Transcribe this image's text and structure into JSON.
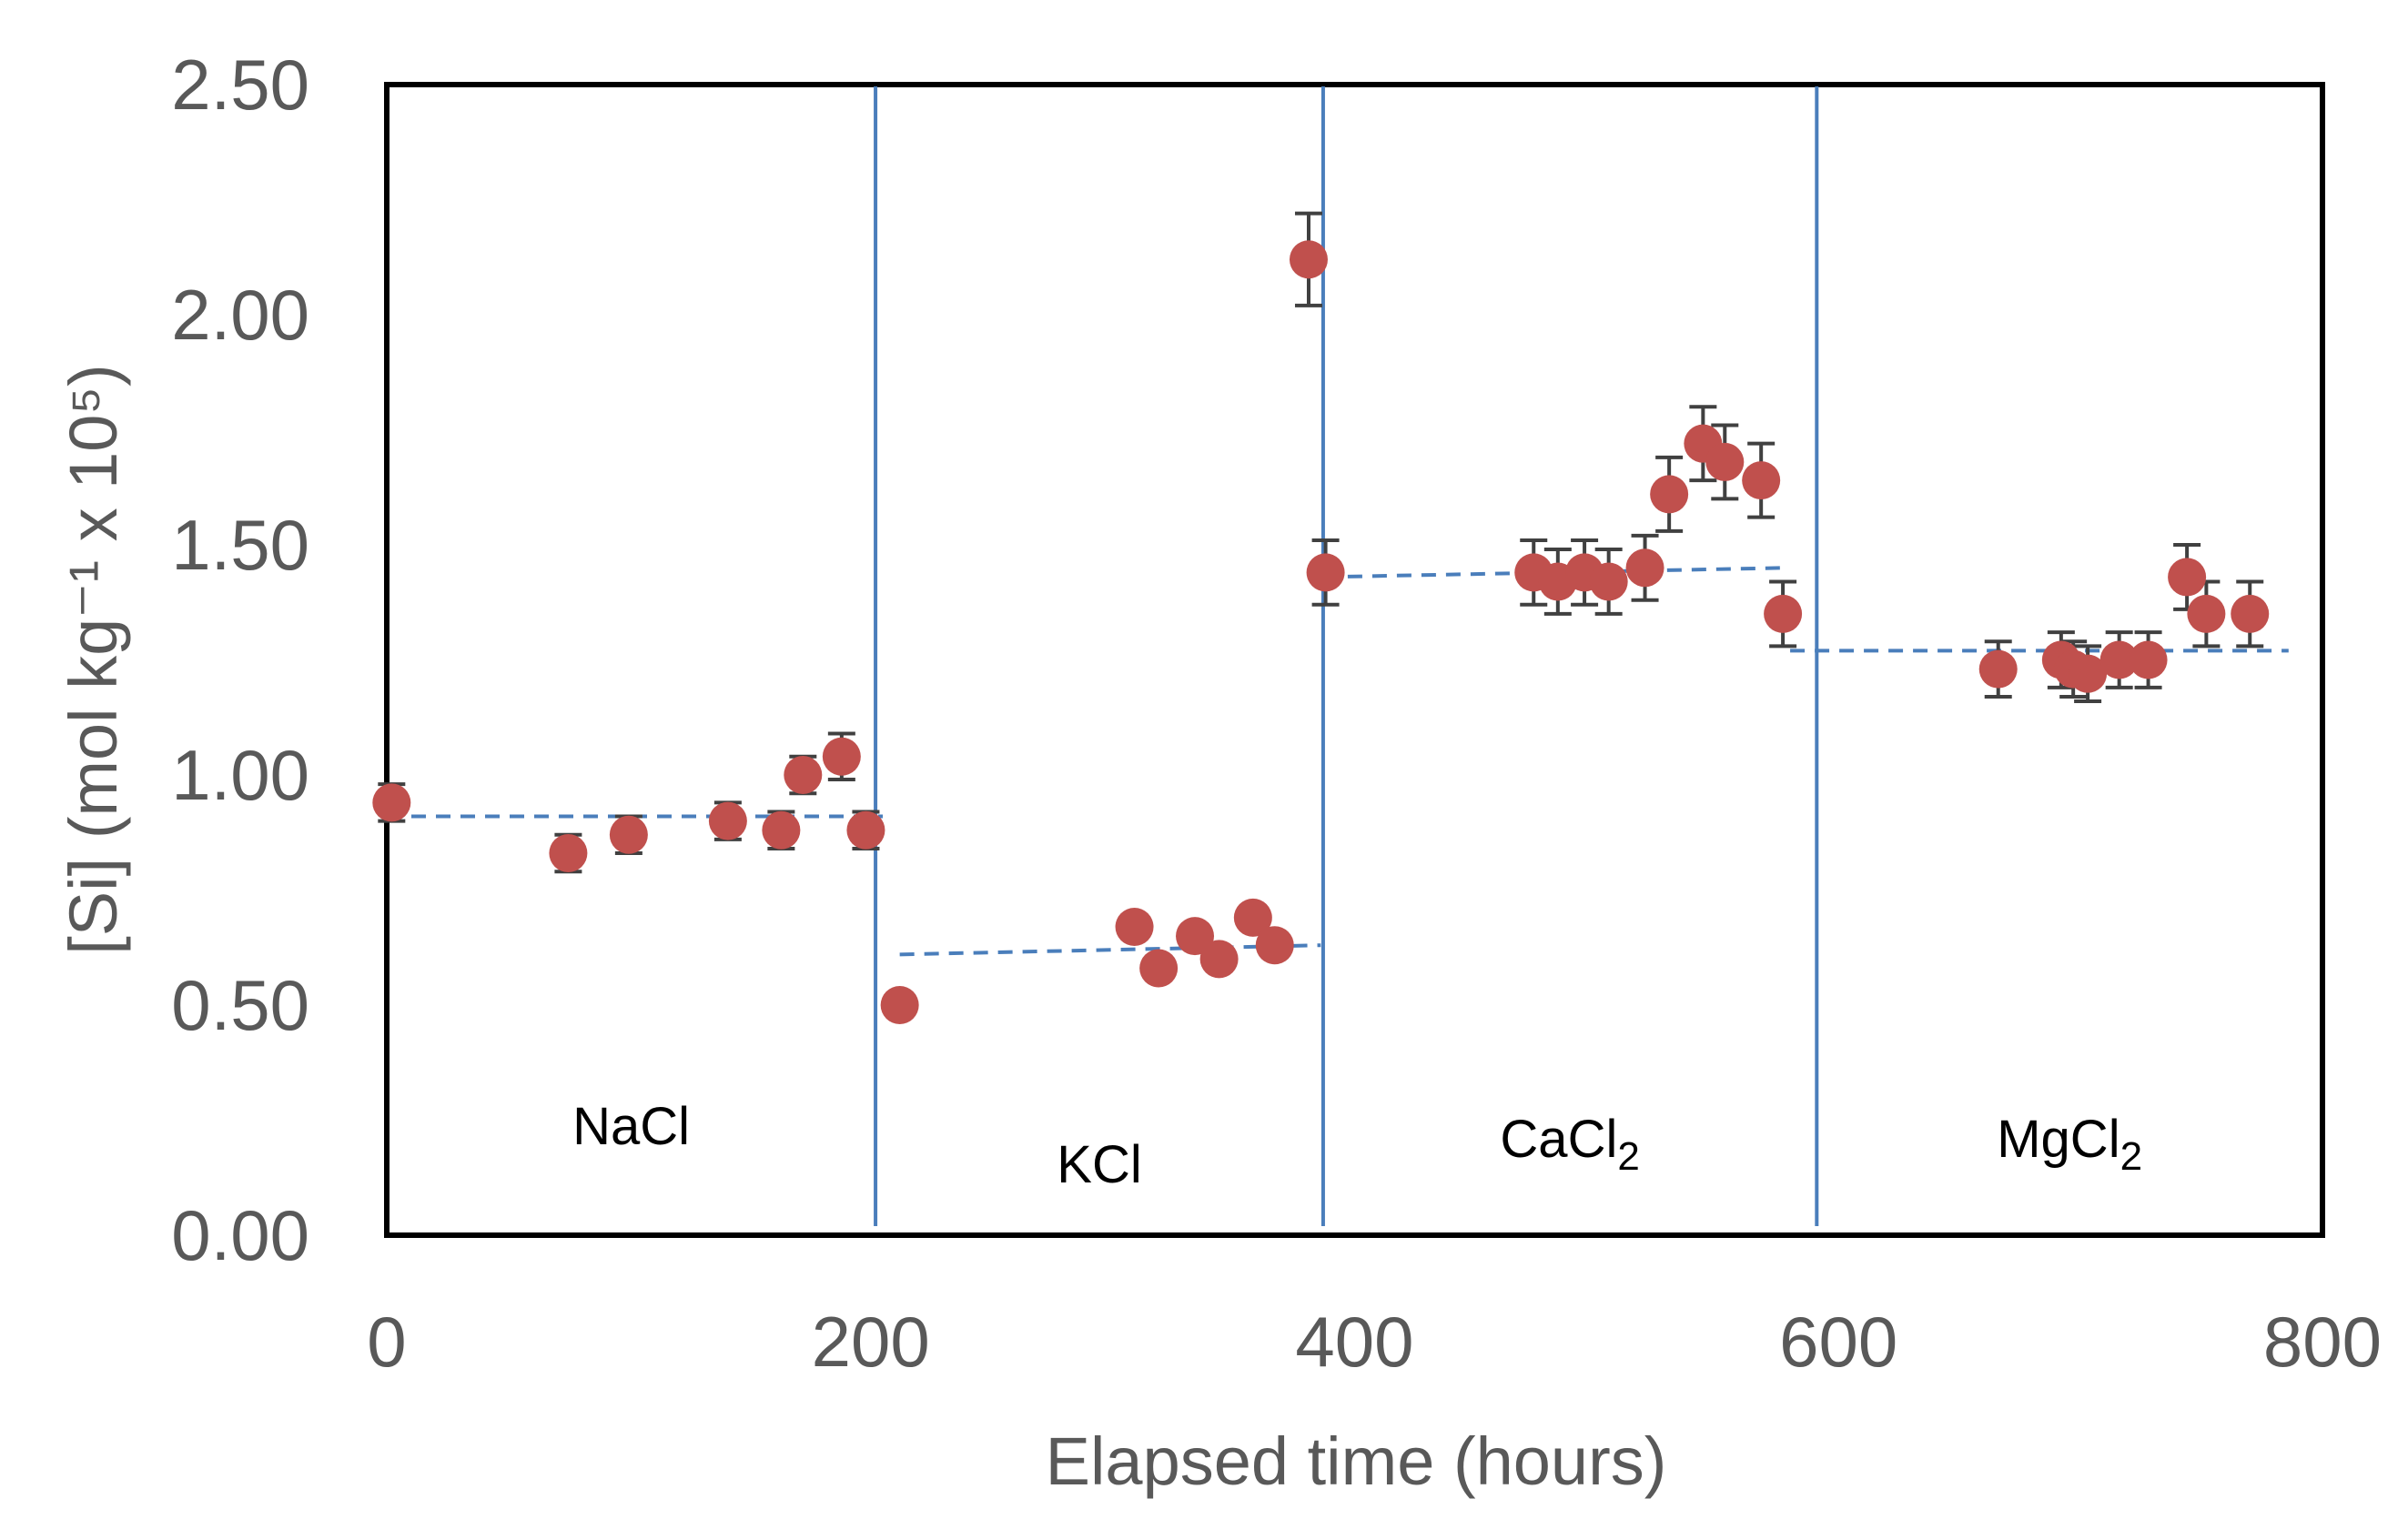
{
  "chart_data": {
    "type": "scatter",
    "title": "",
    "xlabel": "Elapsed time (hours)",
    "ylabel": "[Si]  (mol kg⁻¹ x 10⁵)",
    "xlim": [
      0,
      800
    ],
    "ylim": [
      0,
      2.5
    ],
    "x_ticks": [
      0,
      200,
      400,
      600,
      800
    ],
    "y_ticks": [
      0.0,
      0.5,
      1.0,
      1.5,
      2.0,
      2.5
    ],
    "x_tick_labels": [
      "0",
      "200",
      "400",
      "600",
      "800"
    ],
    "y_tick_labels": [
      "0.00",
      "0.50",
      "1.00",
      "1.50",
      "2.00",
      "2.50"
    ],
    "grid": false,
    "colors": {
      "points": "#c0504d",
      "error_bars": "#404040",
      "dividers": "#4a7ebb",
      "trend": "#4a7ebb",
      "frame": "#000000"
    },
    "phase_boundaries": [
      202,
      387,
      591
    ],
    "segments": [
      {
        "name": "NaCl",
        "label_main": "NaCl",
        "label_sub": "",
        "points": [
          {
            "x": 2,
            "y": 0.94,
            "err": 0.04
          },
          {
            "x": 75,
            "y": 0.83,
            "err": 0.04
          },
          {
            "x": 100,
            "y": 0.87,
            "err": 0.04
          },
          {
            "x": 141,
            "y": 0.9,
            "err": 0.04
          },
          {
            "x": 163,
            "y": 0.88,
            "err": 0.04
          },
          {
            "x": 172,
            "y": 1.0,
            "err": 0.04
          },
          {
            "x": 188,
            "y": 1.04,
            "err": 0.05
          },
          {
            "x": 198,
            "y": 0.88,
            "err": 0.04
          }
        ],
        "trend": {
          "x0": 0,
          "x1": 205,
          "y0": 0.91,
          "y1": 0.91
        }
      },
      {
        "name": "KCl",
        "label_main": "KCl",
        "label_sub": "",
        "points": [
          {
            "x": 212,
            "y": 0.5,
            "err": 0.0
          },
          {
            "x": 309,
            "y": 0.67,
            "err": 0.0
          },
          {
            "x": 319,
            "y": 0.58,
            "err": 0.0
          },
          {
            "x": 334,
            "y": 0.65,
            "err": 0.0
          },
          {
            "x": 344,
            "y": 0.6,
            "err": 0.0
          },
          {
            "x": 358,
            "y": 0.69,
            "err": 0.0
          },
          {
            "x": 367,
            "y": 0.63,
            "err": 0.0
          }
        ],
        "trend": {
          "x0": 212,
          "x1": 386,
          "y0": 0.61,
          "y1": 0.63
        }
      },
      {
        "name": "CaCl2",
        "label_main": "CaCl",
        "label_sub": "2",
        "points": [
          {
            "x": 381,
            "y": 2.12,
            "err": 0.1
          },
          {
            "x": 388,
            "y": 1.44,
            "err": 0.07
          },
          {
            "x": 474,
            "y": 1.44,
            "err": 0.07
          },
          {
            "x": 484,
            "y": 1.42,
            "err": 0.07
          },
          {
            "x": 495,
            "y": 1.44,
            "err": 0.07
          },
          {
            "x": 505,
            "y": 1.42,
            "err": 0.07
          },
          {
            "x": 520,
            "y": 1.45,
            "err": 0.07
          },
          {
            "x": 530,
            "y": 1.61,
            "err": 0.08
          },
          {
            "x": 544,
            "y": 1.72,
            "err": 0.08
          },
          {
            "x": 553,
            "y": 1.68,
            "err": 0.08
          },
          {
            "x": 568,
            "y": 1.64,
            "err": 0.08
          },
          {
            "x": 577,
            "y": 1.35,
            "err": 0.07
          }
        ],
        "trend": {
          "x0": 387,
          "x1": 578,
          "y0": 1.43,
          "y1": 1.45
        }
      },
      {
        "name": "MgCl2",
        "label_main": "MgCl",
        "label_sub": "2",
        "points": [
          {
            "x": 666,
            "y": 1.23,
            "err": 0.06
          },
          {
            "x": 692,
            "y": 1.25,
            "err": 0.06
          },
          {
            "x": 697,
            "y": 1.23,
            "err": 0.06
          },
          {
            "x": 703,
            "y": 1.22,
            "err": 0.06
          },
          {
            "x": 716,
            "y": 1.25,
            "err": 0.06
          },
          {
            "x": 728,
            "y": 1.25,
            "err": 0.06
          },
          {
            "x": 744,
            "y": 1.43,
            "err": 0.07
          },
          {
            "x": 752,
            "y": 1.35,
            "err": 0.07
          },
          {
            "x": 770,
            "y": 1.35,
            "err": 0.07
          }
        ],
        "trend": {
          "x0": 580,
          "x1": 786,
          "y0": 1.27,
          "y1": 1.27
        }
      }
    ]
  }
}
